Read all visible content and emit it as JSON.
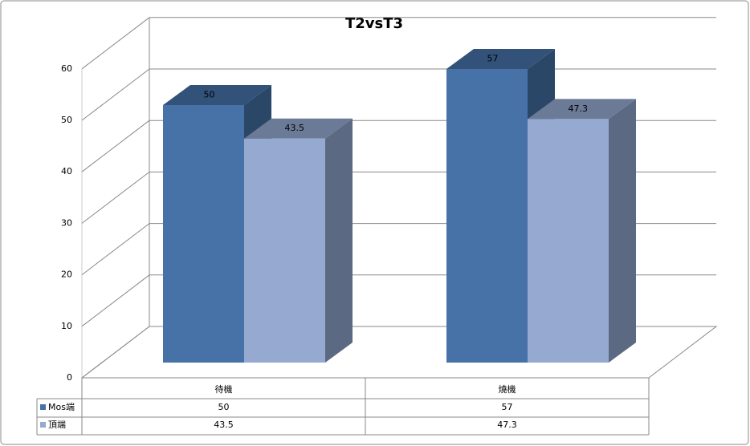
{
  "chart_data": {
    "type": "bar",
    "title": "T2vsT3",
    "categories": [
      "待機",
      "燒機"
    ],
    "series": [
      {
        "name": "Mos端",
        "color": "#4672a8",
        "values": [
          50,
          57
        ]
      },
      {
        "name": "頂端",
        "color": "#95a9d1",
        "values": [
          43.5,
          47.3
        ]
      }
    ],
    "ylim": [
      0,
      60
    ],
    "yticks": [
      0,
      10,
      20,
      30,
      40,
      50,
      60
    ],
    "grid": true
  }
}
